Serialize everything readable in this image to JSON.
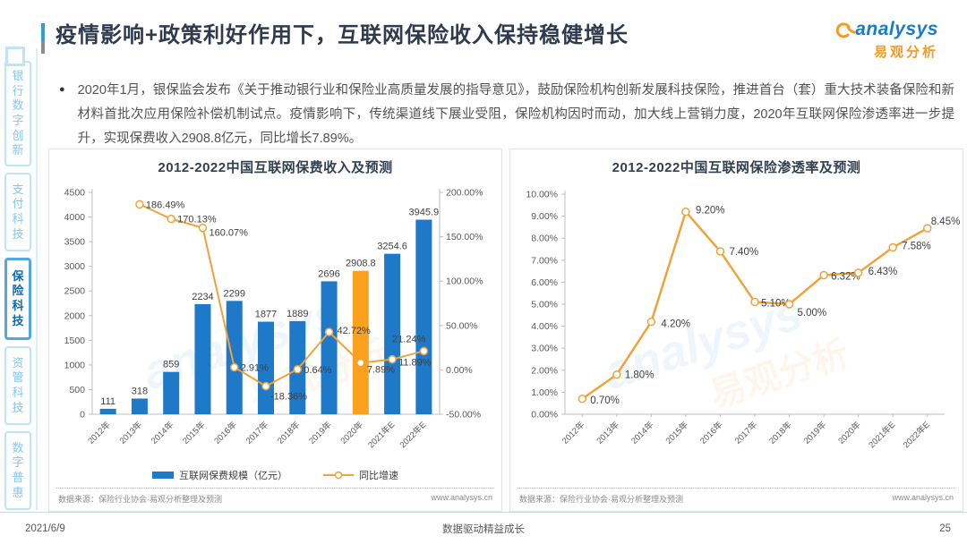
{
  "header": {
    "title": "疫情影响+政策利好作用下，互联网保险收入保持稳健增长",
    "logo_text": "analysys",
    "logo_subtext": "易观分析"
  },
  "sidebar": {
    "items": [
      {
        "label": "银行数字创新",
        "active": false
      },
      {
        "label": "支付科技",
        "active": false
      },
      {
        "label": "保险科技",
        "active": true
      },
      {
        "label": "资管科技",
        "active": false
      },
      {
        "label": "数字普惠",
        "active": false
      }
    ]
  },
  "intro": {
    "bullet": "●",
    "text": "2020年1月，银保监会发布《关于推动银行业和保险业高质量发展的指导意见》，鼓励保险机构创新发展科技保险，推进首台（套）重大技术装备保险和新材料首批次应用保险补偿机制试点。疫情影响下，传统渠道线下展业受阻，保险机构因时而动，加大线上营销力度，2020年互联网保险渗透率进一步提升，实现保费收入2908.8亿元，同比增长7.89%。"
  },
  "chart_data": [
    {
      "type": "bar",
      "title": "2012-2022中国互联网保费收入及预测",
      "categories": [
        "2012年",
        "2013年",
        "2014年",
        "2015年",
        "2016年",
        "2017年",
        "2018年",
        "2019年",
        "2020年",
        "2021年E",
        "2022年E"
      ],
      "series": [
        {
          "name": "互联网保费规模（亿元）",
          "type": "bar",
          "values": [
            111,
            318,
            859,
            2234,
            2299,
            1877,
            1889,
            2696,
            2908.8,
            3254.6,
            3945.9
          ],
          "labels": [
            "111",
            "318",
            "859",
            "2234",
            "2299",
            "1877",
            "1889",
            "2696",
            "2908.8",
            "3254.6",
            "3945.9"
          ],
          "highlight_index": 8
        },
        {
          "name": "同比增速",
          "type": "line",
          "values": [
            null,
            186.49,
            170.13,
            160.07,
            2.91,
            -18.36,
            0.64,
            42.72,
            7.89,
            11.89,
            21.24
          ],
          "labels": [
            null,
            "186.49%",
            "170.13%",
            "160.07%",
            "2.91%",
            "-18.36%",
            "0.64%",
            "42.72%",
            "7.89%",
            "11.89%",
            "21.24%"
          ]
        }
      ],
      "y_left": {
        "min": 0,
        "max": 4500,
        "step": 500
      },
      "y_right": {
        "min": -50,
        "max": 200,
        "step": 50,
        "suffix": "%"
      },
      "grid": false,
      "legend_position": "bottom"
    },
    {
      "type": "line",
      "title": "2012-2022中国互联网保险渗透率及预测",
      "categories": [
        "2012年",
        "2013年",
        "2014年",
        "2015年",
        "2016年",
        "2017年",
        "2018年",
        "2019年",
        "2020年",
        "2021年E",
        "2022年E"
      ],
      "values": [
        0.7,
        1.8,
        4.2,
        9.2,
        7.4,
        5.1,
        5.0,
        6.32,
        6.43,
        7.58,
        8.45
      ],
      "labels": [
        "0.70%",
        "1.80%",
        "4.20%",
        "9.20%",
        "7.40%",
        "5.10%",
        "5.00%",
        "6.32%",
        "6.43%",
        "7.58%",
        "8.45%"
      ],
      "ylim": [
        0,
        10
      ],
      "y_step": 1,
      "suffix": "%",
      "grid": false,
      "legend_position": "none"
    }
  ],
  "panels": [
    {
      "source": "数据来源：保险行业协会·易观分析整理及预测",
      "site": "www.analysys.cn"
    },
    {
      "source": "数据来源：保险行业协会·易观分析整理及预测",
      "site": "www.analysys.cn"
    }
  ],
  "footer": {
    "date": "2021/6/9",
    "slogan": "数据驱动精益成长",
    "page_number": "25"
  },
  "colors": {
    "bar_blue": "#1e7ac9",
    "bar_highlight": "#faa21e",
    "line_orange": "#efa33c",
    "axis_gray": "#bfbfbf",
    "label_dark": "#404040",
    "tick_gray": "#595959",
    "sidebar_active": "#1068b0",
    "sidebar_inactive": "#85c6ee",
    "logo_blue": "#1b7bc4",
    "logo_orange": "#f59a23"
  }
}
